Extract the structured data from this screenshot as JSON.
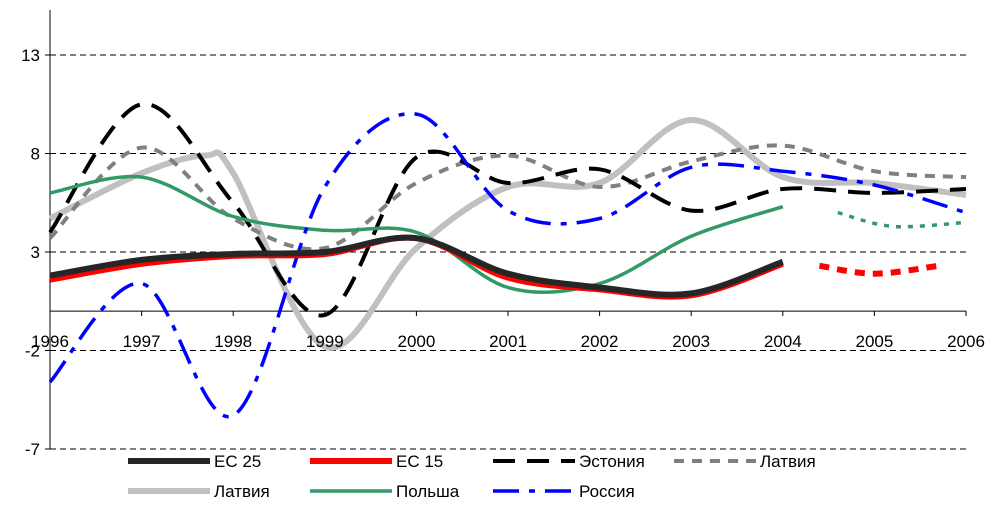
{
  "chart_data": {
    "type": "line",
    "title": "",
    "xlabel": "",
    "ylabel": "",
    "x_ticks": [
      "1996",
      "1997",
      "1998",
      "1999",
      "2000",
      "2001",
      "2002",
      "2003",
      "2004",
      "2005",
      "2006"
    ],
    "y_ticks": [
      13,
      8,
      3,
      -2,
      -7
    ],
    "xlim": [
      1996,
      2006
    ],
    "ylim": [
      -7,
      15
    ],
    "grid": "horizontal dashed",
    "legend_position": "bottom",
    "series": [
      {
        "name": "ЕС 25",
        "color": "#262626",
        "style": "solid-thick",
        "points": [
          [
            1996,
            1.8
          ],
          [
            1997,
            2.6
          ],
          [
            1998,
            2.9
          ],
          [
            1999,
            3.0
          ],
          [
            2000,
            3.7
          ],
          [
            2001,
            1.9
          ],
          [
            2002,
            1.2
          ],
          [
            2003,
            0.9
          ],
          [
            2004,
            2.5
          ]
        ]
      },
      {
        "name": "ЕС 15",
        "color": "#ff0000",
        "style": "solid-thick",
        "points": [
          [
            1996,
            1.6
          ],
          [
            1997,
            2.4
          ],
          [
            1998,
            2.8
          ],
          [
            1999,
            2.9
          ],
          [
            2000,
            3.7
          ],
          [
            2001,
            1.7
          ],
          [
            2002,
            1.1
          ],
          [
            2003,
            0.8
          ],
          [
            2004,
            2.4
          ]
        ],
        "forecast": [
          [
            2004.4,
            2.3
          ],
          [
            2005,
            1.9
          ],
          [
            2005.7,
            2.3
          ]
        ]
      },
      {
        "name": "Эстония",
        "color": "#000000",
        "style": "long-dash",
        "points": [
          [
            1996,
            4.0
          ],
          [
            1997,
            10.5
          ],
          [
            1998,
            5.5
          ],
          [
            1999,
            -0.2
          ],
          [
            2000,
            7.8
          ],
          [
            2001,
            6.5
          ],
          [
            2002,
            7.2
          ],
          [
            2003,
            5.1
          ],
          [
            2004,
            6.2
          ],
          [
            2005,
            6.0
          ],
          [
            2006,
            6.2
          ]
        ]
      },
      {
        "name": "Латвия",
        "color": "#808080",
        "style": "short-dash",
        "points": [
          [
            1996,
            3.7
          ],
          [
            1997,
            8.3
          ],
          [
            1998,
            4.7
          ],
          [
            1999,
            3.2
          ],
          [
            2000,
            6.5
          ],
          [
            2001,
            7.9
          ],
          [
            2002,
            6.3
          ],
          [
            2003,
            7.6
          ],
          [
            2004,
            8.4
          ],
          [
            2005,
            7.1
          ],
          [
            2006,
            6.8
          ]
        ]
      },
      {
        "name": "Латвия",
        "color": "#c0c0c0",
        "style": "solid-thick",
        "points": [
          [
            1996,
            4.7
          ],
          [
            1997,
            7.0
          ],
          [
            1997.7,
            7.9
          ],
          [
            1998,
            7.0
          ],
          [
            1999,
            -1.8
          ],
          [
            2000,
            3.2
          ],
          [
            2001,
            6.3
          ],
          [
            2002,
            6.5
          ],
          [
            2003,
            9.7
          ],
          [
            2004,
            6.8
          ],
          [
            2005,
            6.5
          ],
          [
            2006,
            5.9
          ]
        ]
      },
      {
        "name": "Польша",
        "color": "#339966",
        "style": "solid",
        "points": [
          [
            1996,
            6.0
          ],
          [
            1997,
            6.8
          ],
          [
            1998,
            4.8
          ],
          [
            1999,
            4.1
          ],
          [
            2000,
            4.0
          ],
          [
            2001,
            1.2
          ],
          [
            2002,
            1.4
          ],
          [
            2003,
            3.8
          ],
          [
            2004,
            5.3
          ]
        ],
        "forecast": [
          [
            2004.6,
            5.0
          ],
          [
            2005.2,
            4.3
          ],
          [
            2006,
            4.5
          ]
        ]
      },
      {
        "name": "Россия",
        "color": "#0000ff",
        "style": "dash-dot",
        "points": [
          [
            1996,
            -3.6
          ],
          [
            1997,
            1.4
          ],
          [
            1998,
            -5.3
          ],
          [
            1999,
            6.3
          ],
          [
            2000,
            10.0
          ],
          [
            2001,
            5.1
          ],
          [
            2002,
            4.7
          ],
          [
            2003,
            7.3
          ],
          [
            2004,
            7.1
          ],
          [
            2005,
            6.4
          ],
          [
            2006,
            5.0
          ]
        ]
      }
    ]
  }
}
